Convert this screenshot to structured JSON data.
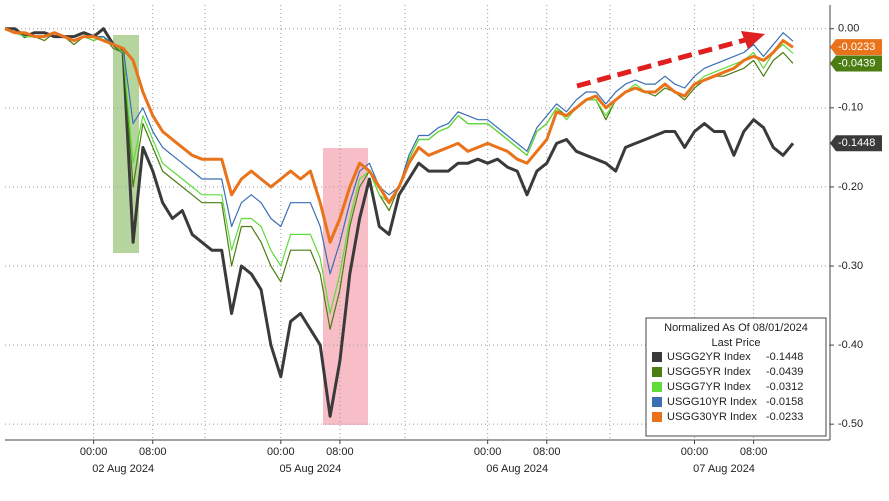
{
  "chart_data": {
    "type": "line",
    "categories": [
      null,
      null,
      null,
      null,
      null,
      null,
      null,
      null,
      null,
      "00:00",
      null,
      null,
      null,
      null,
      null,
      "08:00",
      null,
      null,
      null,
      null,
      null,
      null,
      null,
      null,
      null,
      null,
      null,
      null,
      "00:00",
      null,
      null,
      null,
      null,
      null,
      "08:00",
      null,
      null,
      null,
      null,
      null,
      null,
      null,
      null,
      null,
      null,
      null,
      null,
      null,
      null,
      "00:00",
      null,
      null,
      null,
      null,
      null,
      "08:00",
      null,
      null,
      null,
      null,
      null,
      null,
      null,
      null,
      null,
      null,
      null,
      null,
      null,
      null,
      "00:00",
      null,
      null,
      null,
      null,
      null,
      "08:00",
      null,
      null,
      null,
      null
    ],
    "day_labels": [
      "02 Aug 2024",
      "05 Aug 2024",
      "06 Aug 2024",
      "07 Aug 2024"
    ],
    "ylim": [
      -0.52,
      0.03
    ],
    "yticks": [
      {
        "value": 0,
        "label": "0.00"
      },
      {
        "value": -0.1,
        "label": "-0.10"
      },
      {
        "value": -0.2,
        "label": "-0.20"
      },
      {
        "value": -0.3,
        "label": "-0.30"
      },
      {
        "value": -0.4,
        "label": "-0.40"
      },
      {
        "value": -0.5,
        "label": "-0.50"
      }
    ],
    "grid": true,
    "legend": {
      "title": "Normalized As Of 08/01/2024",
      "subtitle": "Last Price",
      "position": "lower right"
    },
    "series": [
      {
        "name": "USGG2YR Index",
        "color": "#3a3a3a",
        "width": 3,
        "axis_tag": true,
        "values": [
          0,
          0,
          -0.01,
          -0.005,
          -0.005,
          -0.01,
          -0.01,
          -0.01,
          -0.005,
          -0.01,
          0,
          -0.02,
          -0.03,
          -0.27,
          -0.15,
          -0.18,
          -0.22,
          -0.24,
          -0.23,
          -0.26,
          -0.27,
          -0.28,
          -0.28,
          -0.36,
          -0.3,
          -0.31,
          -0.33,
          -0.4,
          -0.44,
          -0.37,
          -0.36,
          -0.38,
          -0.4,
          -0.49,
          -0.42,
          -0.31,
          -0.24,
          -0.19,
          -0.25,
          -0.26,
          -0.21,
          -0.19,
          -0.17,
          -0.18,
          -0.18,
          -0.18,
          -0.17,
          -0.17,
          -0.165,
          -0.17,
          -0.165,
          -0.175,
          -0.18,
          -0.21,
          -0.18,
          -0.17,
          -0.145,
          -0.14,
          -0.155,
          -0.16,
          -0.165,
          -0.17,
          -0.18,
          -0.15,
          -0.145,
          -0.14,
          -0.135,
          -0.13,
          -0.13,
          -0.15,
          -0.13,
          -0.12,
          -0.13,
          -0.13,
          -0.16,
          -0.13,
          -0.115,
          -0.125,
          -0.15,
          -0.16,
          -0.1448
        ]
      },
      {
        "name": "USGG5YR Index",
        "color": "#4b7d12",
        "width": 1.2,
        "axis_tag": true,
        "values": [
          0,
          -0.005,
          -0.01,
          -0.01,
          -0.015,
          -0.005,
          -0.01,
          -0.02,
          -0.01,
          -0.015,
          -0.01,
          -0.025,
          -0.03,
          -0.2,
          -0.12,
          -0.15,
          -0.18,
          -0.19,
          -0.2,
          -0.21,
          -0.22,
          -0.22,
          -0.22,
          -0.3,
          -0.25,
          -0.25,
          -0.27,
          -0.3,
          -0.32,
          -0.28,
          -0.28,
          -0.28,
          -0.31,
          -0.38,
          -0.33,
          -0.25,
          -0.2,
          -0.18,
          -0.21,
          -0.23,
          -0.2,
          -0.165,
          -0.14,
          -0.14,
          -0.13,
          -0.125,
          -0.11,
          -0.12,
          -0.12,
          -0.12,
          -0.13,
          -0.14,
          -0.15,
          -0.16,
          -0.13,
          -0.12,
          -0.1,
          -0.11,
          -0.1,
          -0.09,
          -0.09,
          -0.115,
          -0.09,
          -0.08,
          -0.075,
          -0.08,
          -0.085,
          -0.075,
          -0.08,
          -0.09,
          -0.075,
          -0.065,
          -0.06,
          -0.06,
          -0.055,
          -0.05,
          -0.04,
          -0.06,
          -0.04,
          -0.03,
          -0.0439
        ]
      },
      {
        "name": "USGG7YR Index",
        "color": "#5fdc3a",
        "width": 1.2,
        "axis_tag": false,
        "values": [
          0,
          -0.005,
          -0.01,
          -0.01,
          -0.01,
          -0.005,
          -0.01,
          -0.015,
          -0.01,
          -0.015,
          -0.01,
          -0.02,
          -0.03,
          -0.17,
          -0.11,
          -0.14,
          -0.17,
          -0.18,
          -0.19,
          -0.2,
          -0.21,
          -0.21,
          -0.21,
          -0.28,
          -0.24,
          -0.24,
          -0.25,
          -0.28,
          -0.3,
          -0.26,
          -0.26,
          -0.26,
          -0.29,
          -0.36,
          -0.31,
          -0.24,
          -0.19,
          -0.18,
          -0.21,
          -0.22,
          -0.2,
          -0.165,
          -0.14,
          -0.14,
          -0.13,
          -0.125,
          -0.11,
          -0.12,
          -0.12,
          -0.12,
          -0.13,
          -0.14,
          -0.15,
          -0.16,
          -0.13,
          -0.12,
          -0.1,
          -0.115,
          -0.1,
          -0.09,
          -0.09,
          -0.11,
          -0.09,
          -0.08,
          -0.07,
          -0.08,
          -0.08,
          -0.07,
          -0.08,
          -0.085,
          -0.07,
          -0.06,
          -0.055,
          -0.05,
          -0.045,
          -0.04,
          -0.03,
          -0.05,
          -0.03,
          -0.02,
          -0.0312
        ]
      },
      {
        "name": "USGG10YR Index",
        "color": "#3a6fb4",
        "width": 1.2,
        "axis_tag": false,
        "values": [
          0,
          -0.005,
          -0.005,
          -0.01,
          -0.01,
          -0.005,
          -0.01,
          -0.015,
          -0.01,
          -0.01,
          -0.01,
          -0.02,
          -0.025,
          -0.12,
          -0.1,
          -0.13,
          -0.15,
          -0.16,
          -0.17,
          -0.18,
          -0.19,
          -0.19,
          -0.19,
          -0.25,
          -0.22,
          -0.21,
          -0.22,
          -0.24,
          -0.25,
          -0.22,
          -0.22,
          -0.22,
          -0.25,
          -0.31,
          -0.27,
          -0.22,
          -0.18,
          -0.17,
          -0.2,
          -0.21,
          -0.2,
          -0.16,
          -0.135,
          -0.135,
          -0.125,
          -0.12,
          -0.105,
          -0.11,
          -0.115,
          -0.115,
          -0.125,
          -0.135,
          -0.145,
          -0.155,
          -0.125,
          -0.11,
          -0.095,
          -0.105,
          -0.09,
          -0.08,
          -0.08,
          -0.095,
          -0.08,
          -0.07,
          -0.065,
          -0.07,
          -0.07,
          -0.06,
          -0.07,
          -0.075,
          -0.06,
          -0.05,
          -0.045,
          -0.04,
          -0.035,
          -0.03,
          -0.02,
          -0.035,
          -0.02,
          -0.005,
          -0.0158
        ]
      },
      {
        "name": "USGG30YR Index",
        "color": "#e8731a",
        "width": 3,
        "axis_tag": true,
        "values": [
          0,
          -0.005,
          -0.005,
          -0.01,
          -0.01,
          -0.005,
          -0.01,
          -0.015,
          -0.01,
          -0.01,
          -0.015,
          -0.02,
          -0.025,
          -0.04,
          -0.08,
          -0.11,
          -0.13,
          -0.14,
          -0.15,
          -0.16,
          -0.165,
          -0.165,
          -0.165,
          -0.21,
          -0.19,
          -0.18,
          -0.19,
          -0.2,
          -0.19,
          -0.18,
          -0.19,
          -0.18,
          -0.22,
          -0.27,
          -0.24,
          -0.2,
          -0.17,
          -0.18,
          -0.2,
          -0.22,
          -0.2,
          -0.17,
          -0.15,
          -0.16,
          -0.155,
          -0.15,
          -0.145,
          -0.155,
          -0.15,
          -0.145,
          -0.15,
          -0.155,
          -0.165,
          -0.17,
          -0.155,
          -0.14,
          -0.105,
          -0.11,
          -0.1,
          -0.09,
          -0.085,
          -0.1,
          -0.09,
          -0.08,
          -0.075,
          -0.08,
          -0.08,
          -0.07,
          -0.08,
          -0.085,
          -0.07,
          -0.065,
          -0.06,
          -0.055,
          -0.05,
          -0.04,
          -0.035,
          -0.04,
          -0.03,
          -0.015,
          -0.0233
        ]
      }
    ]
  }
}
